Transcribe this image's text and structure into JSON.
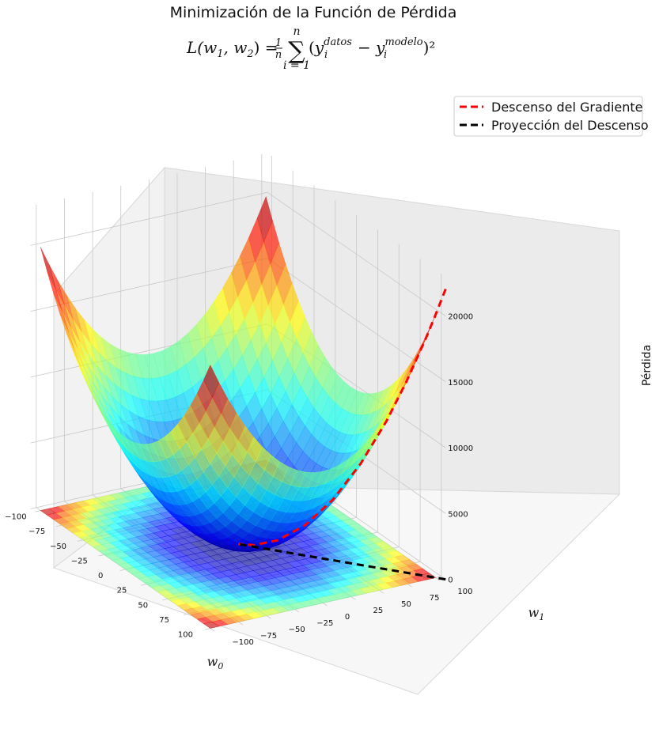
{
  "chart_data": {
    "type": "surface3d",
    "title": "Minimización de la Función de Pérdida",
    "formula": {
      "lhs": "L(w",
      "sub1": "1",
      "mid": ", w",
      "sub2": "2",
      "eq": ") =",
      "frac_num": "1",
      "frac_den": "n",
      "sum_top": "n",
      "sum_bottom": "i = 1",
      "paren_open": "(y",
      "sup_datos": "datos",
      "sub_i1": "i",
      "minus": " − y",
      "sup_modelo": "modelo",
      "sub_i2": "i",
      "close": ")²"
    },
    "xlabel": "w",
    "xlabel_sub": "0",
    "ylabel": "w",
    "ylabel_sub": "1",
    "zlabel": "Pérdida",
    "x_ticks": [
      "−100",
      "−75",
      "−50",
      "−25",
      "0",
      "25",
      "50",
      "75",
      "100"
    ],
    "y_ticks": [
      "−100",
      "−75",
      "−50",
      "−25",
      "0",
      "25",
      "50",
      "75",
      "100"
    ],
    "z_ticks": [
      "0",
      "5000",
      "10000",
      "15000",
      "20000"
    ],
    "xlim": [
      -100,
      100
    ],
    "ylim": [
      -100,
      100
    ],
    "zlim": [
      0,
      23000
    ],
    "surface": {
      "function": "w0^2 + w1^2",
      "colormap": "jet",
      "alpha": 0.65
    },
    "series": [
      {
        "name": "Descenso del Gradiente",
        "color": "#ff0000",
        "style": "dashed",
        "w0": [
          105,
          100,
          95,
          85,
          75,
          62,
          48,
          34,
          20,
          8,
          0
        ],
        "w1": [
          105,
          100,
          95,
          85,
          75,
          62,
          48,
          34,
          20,
          8,
          0
        ],
        "loss": [
          22050,
          20000,
          18050,
          14450,
          11250,
          7688,
          4608,
          2312,
          800,
          128,
          0
        ]
      },
      {
        "name": "Proyección del Descenso",
        "color": "#000000",
        "style": "dashed",
        "w0": [
          105,
          100,
          95,
          85,
          75,
          62,
          48,
          34,
          20,
          8,
          0
        ],
        "w1": [
          105,
          100,
          95,
          85,
          75,
          62,
          48,
          34,
          20,
          8,
          0
        ],
        "loss": [
          0,
          0,
          0,
          0,
          0,
          0,
          0,
          0,
          0,
          0,
          0
        ]
      }
    ],
    "legend_location": "top-right",
    "grid": true
  }
}
